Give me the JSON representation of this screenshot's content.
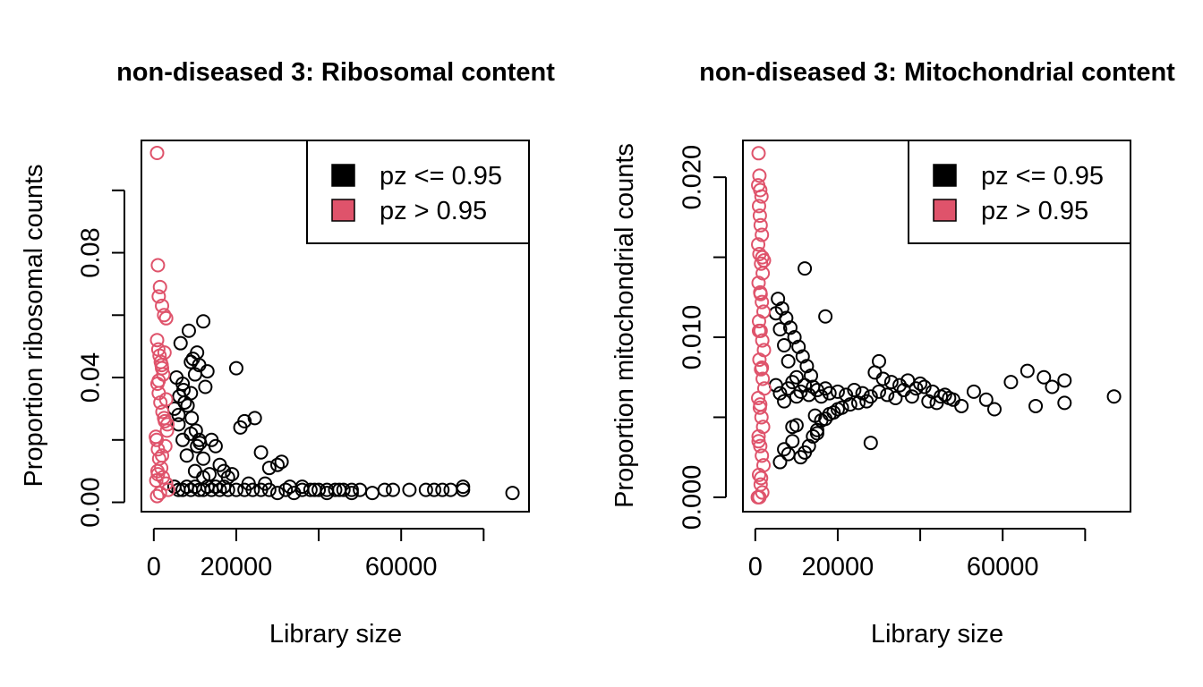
{
  "colors": {
    "low": "#000000",
    "high": "#DF536B"
  },
  "chart_data": [
    {
      "type": "scatter",
      "title": "non-diseased 3: Ribosomal content",
      "xlabel": "Library size",
      "ylabel": "Proportion ribosomal counts",
      "xlim": [
        -3000,
        91000
      ],
      "ylim": [
        -0.003,
        0.116
      ],
      "xticks": [
        0,
        20000,
        40000,
        60000,
        80000
      ],
      "xtick_labels": [
        "0",
        "20000",
        "",
        "60000",
        ""
      ],
      "yticks": [
        0,
        0.02,
        0.04,
        0.06,
        0.08,
        0.1
      ],
      "ytick_labels": [
        "0.00",
        "",
        "0.04",
        "",
        "0.08",
        ""
      ],
      "legend": [
        {
          "label": "pz <= 0.95",
          "color": "#000000"
        },
        {
          "label": "pz > 0.95",
          "color": "#DF536B"
        }
      ],
      "legend_position": "top-right",
      "series": [
        {
          "name": "pz <= 0.95",
          "color": "#000000",
          "x": [
            5000,
            6000,
            7000,
            8000,
            9000,
            10000,
            11000,
            12000,
            13000,
            14000,
            15000,
            16000,
            17000,
            18000,
            20000,
            22000,
            24000,
            26000,
            28000,
            30000,
            32000,
            34000,
            36000,
            38000,
            40000,
            42000,
            44000,
            46000,
            48000,
            50000,
            53000,
            56000,
            58000,
            62000,
            66000,
            68000,
            70000,
            72000,
            75000,
            75000,
            87000,
            5000,
            6000,
            7000,
            8000,
            9000,
            10000,
            11000,
            12000,
            5500,
            7000,
            9000,
            11000,
            13000,
            6500,
            8500,
            10500,
            9500,
            10000,
            12000,
            12500,
            20000,
            21000,
            24500,
            22000,
            26000,
            30000,
            31000,
            28000,
            18000,
            17000,
            14000,
            15000,
            16000,
            19000,
            23000,
            27000,
            33000,
            36000,
            39000,
            42000,
            45000,
            48000,
            6000,
            7500,
            9000,
            10500,
            12000,
            13500,
            6200,
            7200,
            8200,
            9200,
            10200,
            11200
          ],
          "y": [
            0.005,
            0.004,
            0.004,
            0.005,
            0.004,
            0.005,
            0.004,
            0.004,
            0.005,
            0.004,
            0.005,
            0.004,
            0.005,
            0.004,
            0.004,
            0.004,
            0.004,
            0.004,
            0.004,
            0.003,
            0.004,
            0.003,
            0.004,
            0.004,
            0.004,
            0.003,
            0.004,
            0.004,
            0.003,
            0.004,
            0.003,
            0.004,
            0.004,
            0.004,
            0.004,
            0.004,
            0.004,
            0.004,
            0.004,
            0.005,
            0.003,
            0.03,
            0.025,
            0.02,
            0.015,
            0.035,
            0.01,
            0.02,
            0.008,
            0.04,
            0.038,
            0.045,
            0.044,
            0.042,
            0.051,
            0.055,
            0.048,
            0.046,
            0.041,
            0.058,
            0.037,
            0.043,
            0.024,
            0.027,
            0.026,
            0.016,
            0.012,
            0.013,
            0.011,
            0.008,
            0.01,
            0.02,
            0.018,
            0.012,
            0.009,
            0.006,
            0.006,
            0.005,
            0.005,
            0.004,
            0.004,
            0.004,
            0.004,
            0.028,
            0.032,
            0.022,
            0.018,
            0.014,
            0.009,
            0.034,
            0.036,
            0.031,
            0.027,
            0.023,
            0.019
          ]
        },
        {
          "name": "pz > 0.95",
          "color": "#DF536B",
          "x": [
            800,
            1000,
            1200,
            1500,
            2000,
            2500,
            3000,
            800,
            1100,
            1400,
            1700,
            2000,
            2300,
            2600,
            900,
            1200,
            1600,
            2100,
            2700,
            3200,
            700,
            1000,
            1300,
            1800,
            2200,
            3000,
            3500,
            1500,
            800,
            1000,
            2000,
            500,
            2500,
            3000,
            1200,
            1900,
            900,
            2800,
            3300,
            600
          ],
          "y": [
            0.112,
            0.076,
            0.066,
            0.069,
            0.063,
            0.06,
            0.059,
            0.052,
            0.049,
            0.047,
            0.045,
            0.043,
            0.041,
            0.048,
            0.038,
            0.035,
            0.032,
            0.029,
            0.026,
            0.023,
            0.02,
            0.017,
            0.014,
            0.011,
            0.008,
            0.006,
            0.004,
            0.003,
            0.002,
            0.009,
            0.015,
            0.021,
            0.027,
            0.033,
            0.039,
            0.044,
            0.01,
            0.018,
            0.025,
            0.007
          ]
        }
      ]
    },
    {
      "type": "scatter",
      "title": "non-diseased 3: Mitochondrial content",
      "xlabel": "Library size",
      "ylabel": "Proportion mitochondrial counts",
      "xlim": [
        -3000,
        91000
      ],
      "ylim": [
        -0.0009,
        0.0223
      ],
      "xticks": [
        0,
        20000,
        40000,
        60000,
        80000
      ],
      "xtick_labels": [
        "0",
        "20000",
        "",
        "60000",
        ""
      ],
      "yticks": [
        0,
        0.005,
        0.01,
        0.015,
        0.02
      ],
      "ytick_labels": [
        "0.000",
        "",
        "0.010",
        "",
        "0.020"
      ],
      "legend": [
        {
          "label": "pz <= 0.95",
          "color": "#000000"
        },
        {
          "label": "pz > 0.95",
          "color": "#DF536B"
        }
      ],
      "legend_position": "top-right",
      "series": [
        {
          "name": "pz <= 0.95",
          "color": "#000000",
          "x": [
            5000,
            6000,
            7000,
            8000,
            9000,
            10000,
            11000,
            12000,
            13000,
            14000,
            15000,
            16000,
            17000,
            18000,
            20000,
            22000,
            24000,
            26000,
            28000,
            30000,
            32000,
            34000,
            36000,
            38000,
            40000,
            42000,
            44000,
            46000,
            48000,
            50000,
            53000,
            56000,
            58000,
            62000,
            66000,
            68000,
            70000,
            72000,
            75000,
            75000,
            87000,
            5000,
            6000,
            7000,
            8000,
            9000,
            10000,
            11000,
            12000,
            13000,
            14000,
            15000,
            16000,
            18000,
            20000,
            5500,
            6500,
            7500,
            8500,
            9500,
            10500,
            11500,
            12500,
            13500,
            14500,
            17000,
            19000,
            21000,
            23000,
            25000,
            27000,
            29000,
            31000,
            33000,
            35000,
            37000,
            39000,
            41000,
            43000,
            45000,
            47000,
            12000,
            17000,
            10000,
            6000,
            7000,
            8000,
            9000,
            15000,
            28000,
            30000
          ],
          "y": [
            0.007,
            0.0065,
            0.006,
            0.0068,
            0.0072,
            0.0063,
            0.0066,
            0.007,
            0.0064,
            0.0069,
            0.0067,
            0.0063,
            0.0068,
            0.0065,
            0.0066,
            0.0064,
            0.0067,
            0.0065,
            0.0063,
            0.0066,
            0.0064,
            0.0062,
            0.0067,
            0.0063,
            0.0071,
            0.006,
            0.0059,
            0.0064,
            0.0061,
            0.0057,
            0.0066,
            0.0061,
            0.0055,
            0.0072,
            0.0079,
            0.0057,
            0.0075,
            0.0069,
            0.0059,
            0.0073,
            0.0063,
            0.0115,
            0.0105,
            0.0095,
            0.0085,
            0.0035,
            0.0045,
            0.0025,
            0.0028,
            0.0032,
            0.0038,
            0.0042,
            0.0048,
            0.0052,
            0.0055,
            0.0124,
            0.0118,
            0.0112,
            0.0106,
            0.01,
            0.0094,
            0.0088,
            0.0082,
            0.0076,
            0.0051,
            0.0049,
            0.0053,
            0.0056,
            0.0058,
            0.0059,
            0.006,
            0.0078,
            0.0074,
            0.0072,
            0.007,
            0.0073,
            0.0068,
            0.0069,
            0.0066,
            0.0063,
            0.0062,
            0.0143,
            0.0113,
            0.0075,
            0.0022,
            0.003,
            0.0027,
            0.0044,
            0.004,
            0.0034,
            0.0085
          ]
        },
        {
          "name": "pz > 0.95",
          "color": "#DF536B",
          "x": [
            800,
            1000,
            1200,
            1500,
            900,
            1100,
            1300,
            1600,
            700,
            1000,
            1400,
            1800,
            800,
            1200,
            1600,
            2000,
            900,
            1300,
            1700,
            2100,
            1000,
            1400,
            1800,
            2200,
            700,
            1100,
            1500,
            1900,
            800,
            1200,
            1600,
            2000,
            900,
            1300,
            1700,
            600,
            1000,
            1400,
            800,
            1200,
            1600,
            900,
            1300,
            1700,
            2100,
            700
          ],
          "y": [
            0.0215,
            0.0201,
            0.0192,
            0.0188,
            0.0182,
            0.0176,
            0.017,
            0.0164,
            0.0158,
            0.0152,
            0.0146,
            0.014,
            0.0134,
            0.0128,
            0.0122,
            0.0116,
            0.011,
            0.0104,
            0.0098,
            0.0092,
            0.0086,
            0.008,
            0.0074,
            0.0068,
            0.0062,
            0.0056,
            0.005,
            0.0044,
            0.0038,
            0.0032,
            0.0026,
            0.002,
            0.0014,
            0.0008,
            0.0003,
            0.0,
            0.0,
            0.0012,
            0.0035,
            0.0058,
            0.0081,
            0.0104,
            0.0127,
            0.015,
            0.0148,
            0.0195
          ]
        }
      ]
    }
  ]
}
